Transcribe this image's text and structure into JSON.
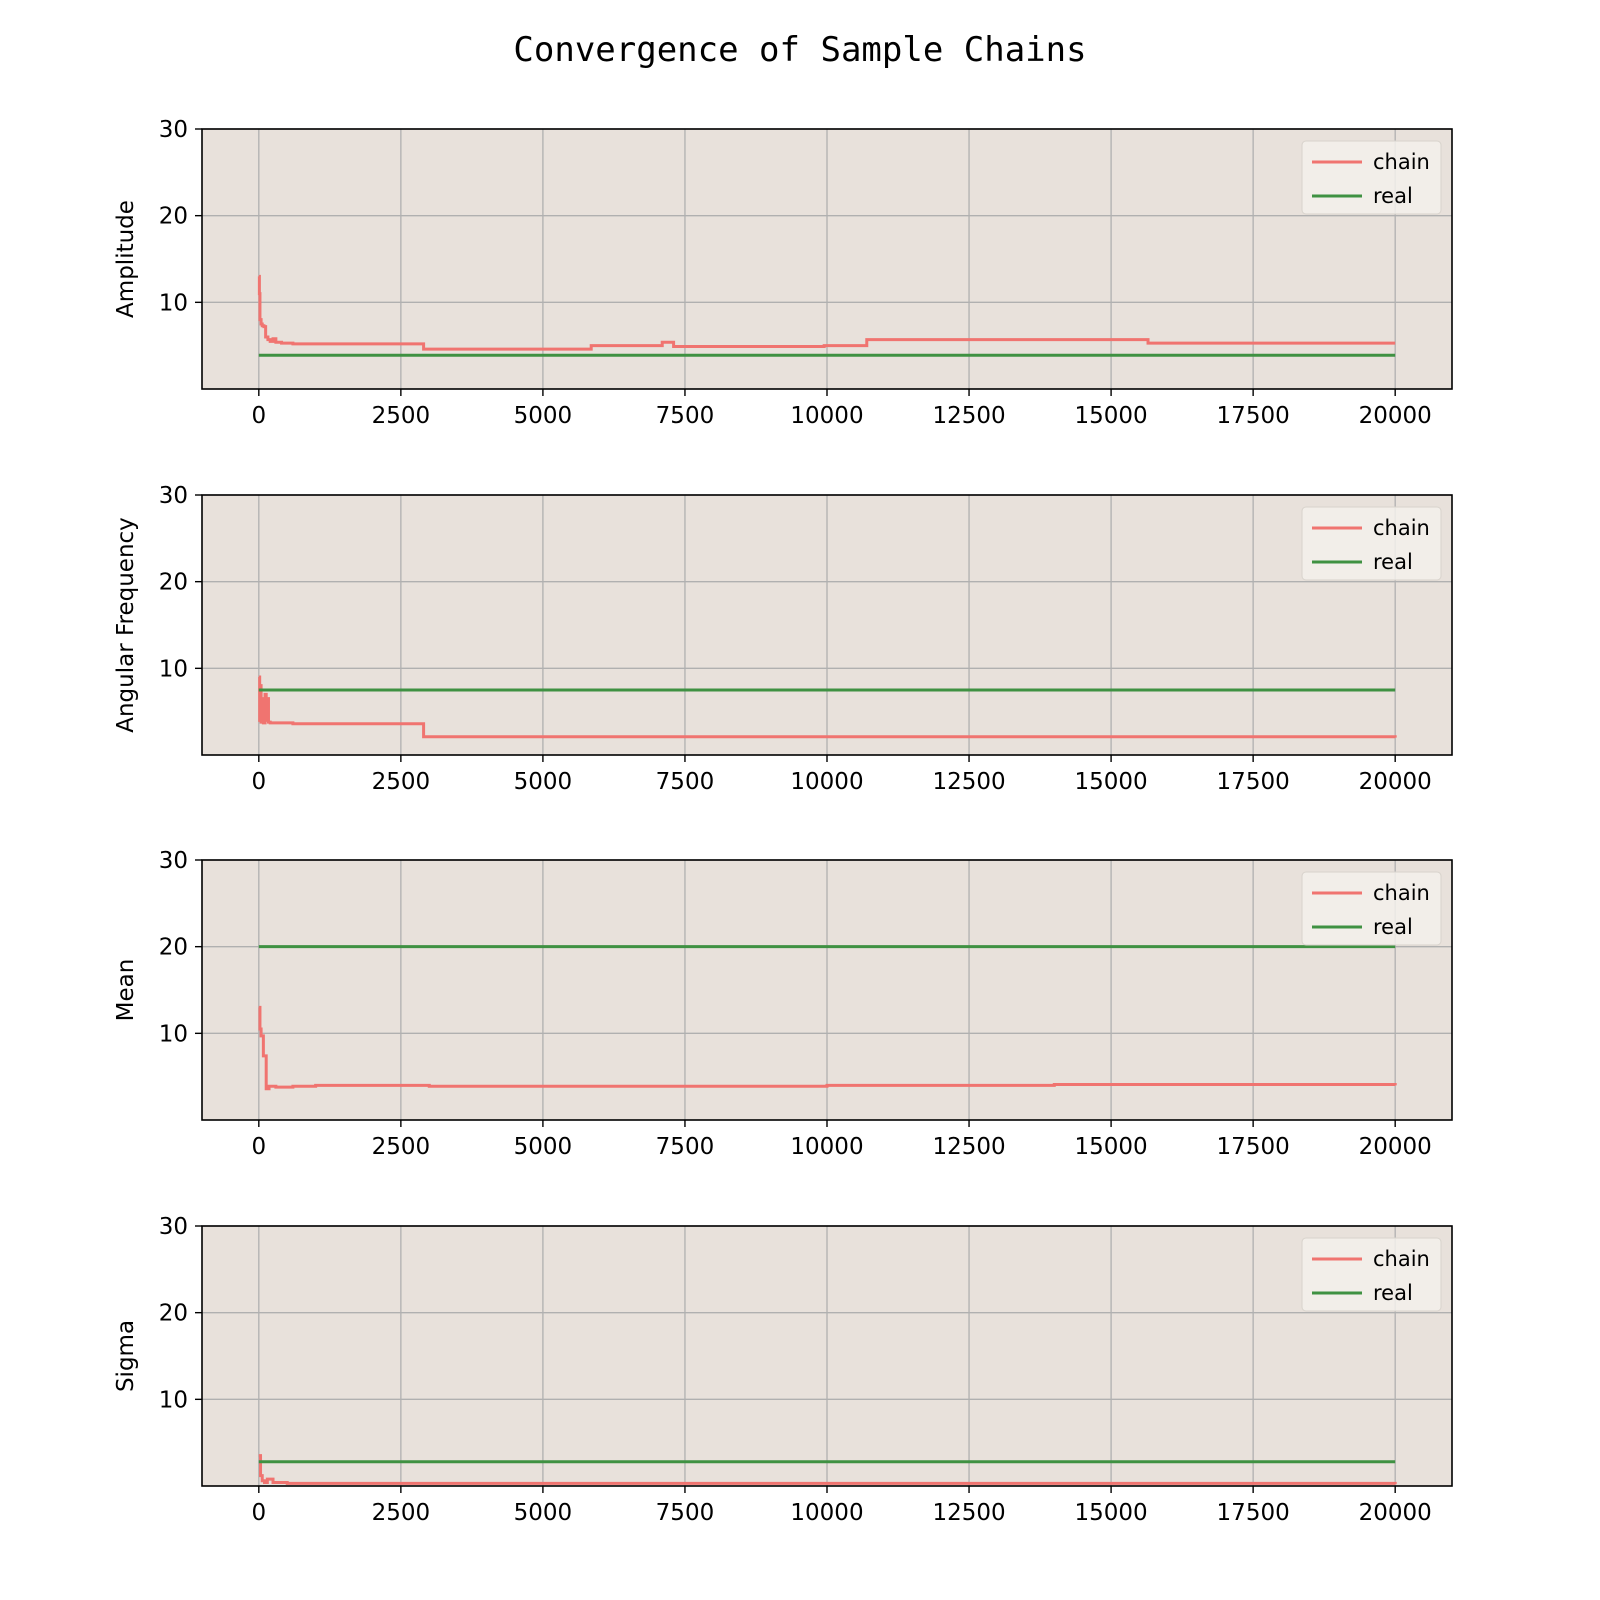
{
  "colors": {
    "figure_bg": "#ffffff",
    "axes_bg": "#e8e1db",
    "grid": "#b0b0b0",
    "chain": "#f07470",
    "real": "#3f9142",
    "legend_bg": "#f3f0eb"
  },
  "chart_data": {
    "title": "Convergence of Sample Chains",
    "legend": [
      "chain",
      "real"
    ],
    "legend_position": "top-right",
    "panels": [
      {
        "type": "line",
        "ylabel": "Amplitude",
        "xlim": [
          -1000,
          21000
        ],
        "ylim": [
          0,
          30
        ],
        "xticks": [
          0,
          2500,
          5000,
          7500,
          10000,
          12500,
          15000,
          17500,
          20000
        ],
        "yticks": [
          10,
          20,
          30
        ],
        "grid": true,
        "series": [
          {
            "name": "chain",
            "step": true,
            "x": [
              0,
              10,
              20,
              40,
              60,
              90,
              120,
              160,
              200,
              250,
              300,
              400,
              600,
              2900,
              5850,
              7100,
              7300,
              9950,
              10700,
              15650,
              20000
            ],
            "y": [
              13,
              11,
              8,
              7.5,
              7.3,
              7.2,
              6,
              5.7,
              5.5,
              5.8,
              5.4,
              5.3,
              5.2,
              4.6,
              5.0,
              5.4,
              4.9,
              5.0,
              5.7,
              5.3,
              5.3
            ]
          },
          {
            "name": "real",
            "step": false,
            "x": [
              0,
              20000
            ],
            "y": [
              3.9,
              3.9
            ]
          }
        ]
      },
      {
        "type": "line",
        "ylabel": "Angular Frequency",
        "xlim": [
          -1000,
          21000
        ],
        "ylim": [
          0,
          30
        ],
        "xticks": [
          0,
          2500,
          5000,
          7500,
          10000,
          12500,
          15000,
          17500,
          20000
        ],
        "yticks": [
          10,
          20,
          30
        ],
        "grid": true,
        "series": [
          {
            "name": "chain",
            "step": true,
            "x": [
              0,
              15,
              25,
              40,
              60,
              80,
              110,
              130,
              150,
              170,
              200,
              600,
              2900,
              20000
            ],
            "y": [
              9,
              4,
              8,
              3.8,
              6.5,
              3.7,
              7,
              4.0,
              6.5,
              3.8,
              3.7,
              3.6,
              2.1,
              2.0
            ]
          },
          {
            "name": "real",
            "step": false,
            "x": [
              0,
              20000
            ],
            "y": [
              7.5,
              7.5
            ]
          }
        ]
      },
      {
        "type": "line",
        "ylabel": "Mean",
        "xlim": [
          -1000,
          21000
        ],
        "ylim": [
          0,
          30
        ],
        "xticks": [
          0,
          2500,
          5000,
          7500,
          10000,
          12500,
          15000,
          17500,
          20000
        ],
        "yticks": [
          10,
          20,
          30
        ],
        "grid": true,
        "series": [
          {
            "name": "chain",
            "step": true,
            "x": [
              0,
              20,
              40,
              80,
              130,
              180,
              300,
              600,
              1000,
              3000,
              10000,
              14000,
              20000
            ],
            "y": [
              13,
              10.5,
              9.7,
              7.4,
              3.6,
              3.9,
              3.8,
              3.9,
              4.0,
              3.9,
              4.0,
              4.1,
              4.0
            ]
          },
          {
            "name": "real",
            "step": false,
            "x": [
              0,
              20000
            ],
            "y": [
              20,
              20
            ]
          }
        ]
      },
      {
        "type": "line",
        "ylabel": "Sigma",
        "xlim": [
          -1000,
          21000
        ],
        "ylim": [
          0,
          30
        ],
        "xticks": [
          0,
          2500,
          5000,
          7500,
          10000,
          12500,
          15000,
          17500,
          20000
        ],
        "yticks": [
          10,
          20,
          30
        ],
        "grid": true,
        "series": [
          {
            "name": "chain",
            "step": true,
            "x": [
              0,
              30,
              60,
              100,
              150,
              250,
              500,
              2000,
              20000
            ],
            "y": [
              3.5,
              1.2,
              0.6,
              0.4,
              0.8,
              0.4,
              0.3,
              0.3,
              0.2
            ]
          },
          {
            "name": "real",
            "step": false,
            "x": [
              0,
              20000
            ],
            "y": [
              2.8,
              2.8
            ]
          }
        ]
      }
    ]
  }
}
